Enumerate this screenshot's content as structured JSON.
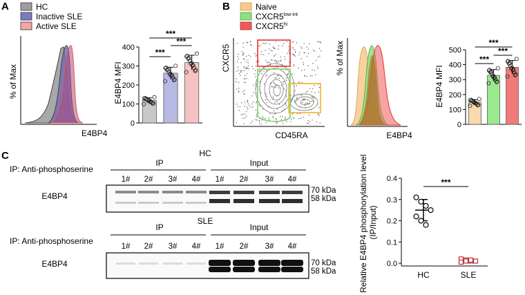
{
  "panels": {
    "a": "A",
    "b": "B",
    "c": "C"
  },
  "panel_a": {
    "legend": [
      {
        "label": "HC",
        "color": "#9e9e9e"
      },
      {
        "label": "Inactive  SLE",
        "color": "#7b7bbf"
      },
      {
        "label": "Active SLE",
        "color": "#f4a6a6"
      }
    ],
    "hist_ylabel": "% of Max",
    "hist_xlabel": "E4BP4"
  },
  "panel_b": {
    "legend": [
      {
        "label": "Naive",
        "color": "#f7c98f"
      },
      {
        "label": "CXCR5",
        "sup": "low-int",
        "color": "#8fe07f"
      },
      {
        "label": "CXCR5",
        "sup": "hi",
        "color": "#ef5a5a"
      }
    ],
    "flow_ylabel": "CXCR5",
    "flow_xlabel": "CD45RA",
    "hist_ylabel": "% of Max",
    "hist_xlabel": "E4BP4"
  },
  "panel_c": {
    "ip_label": "IP:  Anti-phosphoserine",
    "ip_label2": "IP:  Anti-phosphoserine",
    "hc_label": "HC",
    "sle_label": "SLE",
    "ip_header": "IP",
    "input_header": "Input",
    "lanes": [
      "1#",
      "2#",
      "3#",
      "4#",
      "1#",
      "2#",
      "3#",
      "4#"
    ],
    "blot_label": "E4BP4",
    "blot_label2": "E4BP4",
    "kda_70": "70 kDa",
    "kda_58": "58 kDa"
  },
  "chart_data": [
    {
      "type": "bar",
      "ylabel": "E4BP4 MFI",
      "categories": [
        "HC",
        "Inactive  SLE",
        "Active SLE"
      ],
      "values": [
        118,
        262,
        318
      ],
      "colors": [
        "#c8c8c8",
        "#b9b9e6",
        "#f7c2c2"
      ],
      "ylim": [
        0,
        400
      ],
      "yticks": [
        0,
        100,
        200,
        300,
        400
      ],
      "significance": [
        "***",
        "***",
        "***"
      ]
    },
    {
      "type": "bar",
      "ylabel": "E4BP4 MFI",
      "categories": [
        "Naive",
        "CXCR5 low-int",
        "CXCR5 hi"
      ],
      "values": [
        148,
        328,
        382
      ],
      "colors": [
        "#f9d9b0",
        "#9be88f",
        "#f27a7a"
      ],
      "ylim": [
        0,
        500
      ],
      "yticks": [
        0,
        100,
        200,
        300,
        400,
        500
      ],
      "significance": [
        "***",
        "***",
        "***"
      ]
    },
    {
      "type": "scatter",
      "ylabel": "Relative E4BP4 phosphorylation level (IP/Input)",
      "categories": [
        "HC",
        "SLE"
      ],
      "ylim": [
        0,
        0.4
      ],
      "yticks": [
        "0.0",
        "0.1",
        "0.2",
        "0.3",
        "0.4"
      ],
      "series": [
        {
          "name": "HC",
          "values": [
            0.31,
            0.29,
            0.27,
            0.25,
            0.22,
            0.2,
            0.18
          ],
          "mean": 0.25,
          "sd": 0.05
        },
        {
          "name": "SLE",
          "values": [
            0.02,
            0.015,
            0.01,
            0.01,
            0.005,
            0.01,
            0.015
          ],
          "mean": 0.012,
          "sd": 0.006
        }
      ],
      "significance": "***"
    }
  ]
}
